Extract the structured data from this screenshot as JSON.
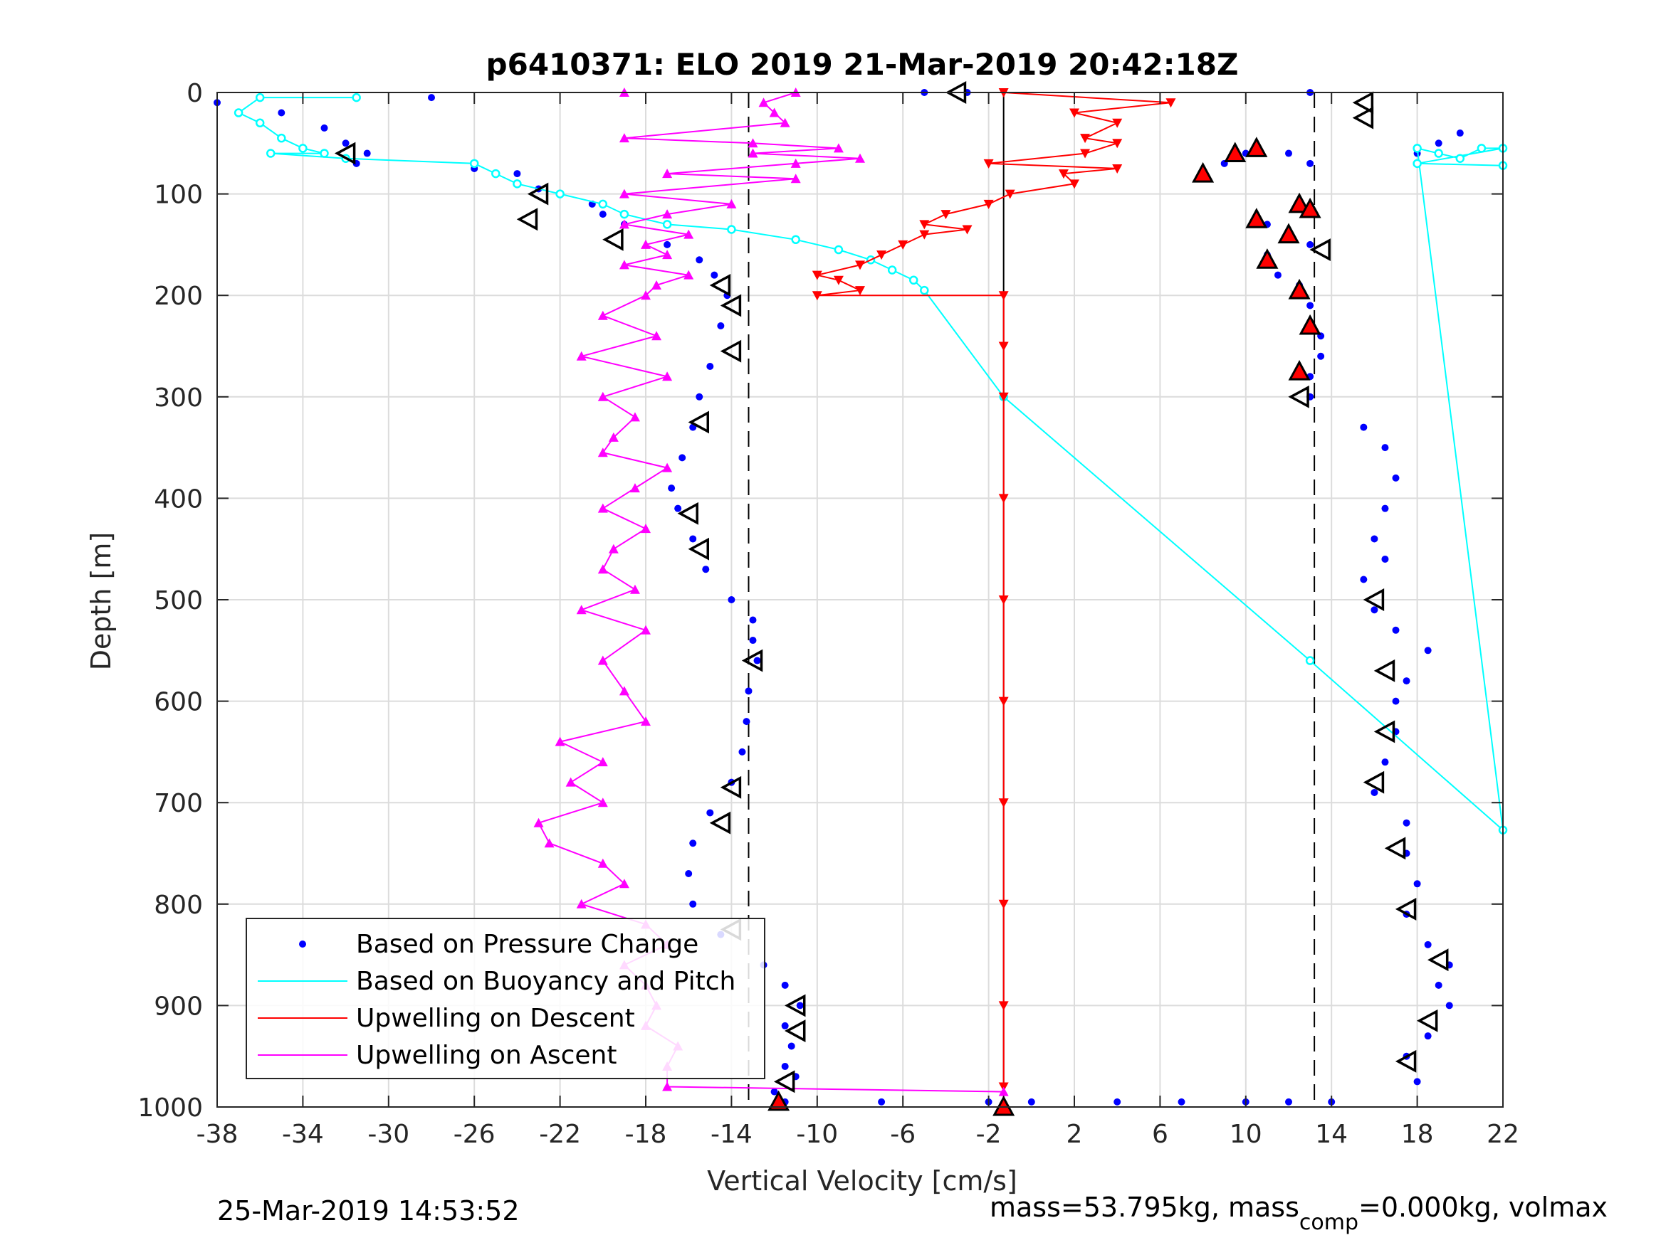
{
  "chart_data": {
    "type": "scatter",
    "title": "p6410371: ELO 2019 21-Mar-2019 20:42:18Z",
    "xlabel": "Vertical Velocity [cm/s]",
    "ylabel": "Depth [m]",
    "xlim": [
      -38,
      22
    ],
    "ylim": [
      0,
      1000
    ],
    "y_reversed": true,
    "grid": true,
    "xticks": [
      "-38",
      "-34",
      "-30",
      "-26",
      "-22",
      "-18",
      "-14",
      "-10",
      "-6",
      "-2",
      "2",
      "6",
      "10",
      "14",
      "18",
      "22"
    ],
    "yticks": [
      "0",
      "100",
      "200",
      "300",
      "400",
      "500",
      "600",
      "700",
      "800",
      "900",
      "1000"
    ],
    "legend_position": "bottom-left",
    "legend": [
      {
        "label": "Based on Pressure Change",
        "color": "#0000ff",
        "style": "dot"
      },
      {
        "label": "Based on Buoyancy and Pitch",
        "color": "#00ffff",
        "style": "line"
      },
      {
        "label": "Upwelling on Descent",
        "color": "#ff0000",
        "style": "line"
      },
      {
        "label": "Upwelling on Ascent",
        "color": "#ff00ff",
        "style": "line"
      }
    ],
    "reference_lines": {
      "vertical_solid": -1.3,
      "dashed": [
        -13.2,
        13.2
      ]
    },
    "series": [
      {
        "name": "Based on Pressure Change",
        "color": "#0000ff",
        "marker": "dot",
        "points": [
          [
            -38,
            10
          ],
          [
            -35,
            20
          ],
          [
            -33,
            35
          ],
          [
            -32,
            50
          ],
          [
            -31,
            60
          ],
          [
            -31.5,
            70
          ],
          [
            -28,
            5
          ],
          [
            -26,
            75
          ],
          [
            -24,
            80
          ],
          [
            -23,
            95
          ],
          [
            -22,
            100
          ],
          [
            -20.5,
            110
          ],
          [
            -20,
            120
          ],
          [
            -19,
            130
          ],
          [
            -17,
            150
          ],
          [
            -15.5,
            165
          ],
          [
            -14.8,
            180
          ],
          [
            -14.2,
            200
          ],
          [
            -14.5,
            230
          ],
          [
            -15,
            270
          ],
          [
            -15.5,
            300
          ],
          [
            -15.8,
            330
          ],
          [
            -16.3,
            360
          ],
          [
            -16.8,
            390
          ],
          [
            -16.5,
            410
          ],
          [
            -15.8,
            440
          ],
          [
            -15.2,
            470
          ],
          [
            -14,
            500
          ],
          [
            -13,
            520
          ],
          [
            -13,
            540
          ],
          [
            -12.8,
            560
          ],
          [
            -13.2,
            590
          ],
          [
            -13.3,
            620
          ],
          [
            -13.5,
            650
          ],
          [
            -14,
            680
          ],
          [
            -15,
            710
          ],
          [
            -15.8,
            740
          ],
          [
            -16,
            770
          ],
          [
            -15.8,
            800
          ],
          [
            -14.5,
            830
          ],
          [
            -12.5,
            860
          ],
          [
            -11.5,
            880
          ],
          [
            -10.8,
            900
          ],
          [
            -11.5,
            920
          ],
          [
            -11.2,
            940
          ],
          [
            -11.5,
            960
          ],
          [
            -11,
            970
          ],
          [
            -12,
            985
          ],
          [
            -11.5,
            995
          ],
          [
            -7,
            995
          ],
          [
            -2,
            995
          ],
          [
            0,
            995
          ],
          [
            4,
            995
          ],
          [
            7,
            995
          ],
          [
            10,
            995
          ],
          [
            12,
            995
          ],
          [
            14,
            995
          ],
          [
            10,
            60
          ],
          [
            9,
            70
          ],
          [
            8,
            80
          ],
          [
            12,
            60
          ],
          [
            13,
            70
          ],
          [
            12.5,
            110
          ],
          [
            13,
            120
          ],
          [
            11,
            130
          ],
          [
            12,
            140
          ],
          [
            13,
            150
          ],
          [
            11,
            160
          ],
          [
            11.5,
            180
          ],
          [
            12.5,
            190
          ],
          [
            13,
            210
          ],
          [
            13.5,
            240
          ],
          [
            13.5,
            260
          ],
          [
            13,
            280
          ],
          [
            13,
            300
          ],
          [
            15.5,
            330
          ],
          [
            16.5,
            350
          ],
          [
            17,
            380
          ],
          [
            16.5,
            410
          ],
          [
            16,
            440
          ],
          [
            16.5,
            460
          ],
          [
            15.5,
            480
          ],
          [
            16,
            510
          ],
          [
            17,
            530
          ],
          [
            18.5,
            550
          ],
          [
            17.5,
            580
          ],
          [
            17,
            600
          ],
          [
            17,
            630
          ],
          [
            16.5,
            660
          ],
          [
            16,
            690
          ],
          [
            17.5,
            720
          ],
          [
            17.5,
            750
          ],
          [
            18,
            780
          ],
          [
            17.5,
            810
          ],
          [
            18.5,
            840
          ],
          [
            19.5,
            860
          ],
          [
            19,
            880
          ],
          [
            19.5,
            900
          ],
          [
            18.5,
            930
          ],
          [
            17.5,
            950
          ],
          [
            18,
            975
          ],
          [
            13,
            0
          ],
          [
            20,
            40
          ],
          [
            19,
            50
          ],
          [
            18,
            60
          ],
          [
            -3,
            0
          ],
          [
            -5,
            0
          ]
        ]
      },
      {
        "name": "Based on Buoyancy and Pitch",
        "color": "#00ffff",
        "marker": "open-circle",
        "points": [
          [
            -31.5,
            5
          ],
          [
            -36,
            5
          ],
          [
            -37,
            20
          ],
          [
            -36,
            30
          ],
          [
            -35,
            45
          ],
          [
            -34,
            55
          ],
          [
            -33,
            60
          ],
          [
            -35.5,
            60
          ],
          [
            -32,
            65
          ],
          [
            -26,
            70
          ],
          [
            -25,
            80
          ],
          [
            -24,
            90
          ],
          [
            -22,
            100
          ],
          [
            -20,
            110
          ],
          [
            -19,
            120
          ],
          [
            -17,
            130
          ],
          [
            -14,
            135
          ],
          [
            -11,
            145
          ],
          [
            -9,
            155
          ],
          [
            -7.5,
            165
          ],
          [
            -6.5,
            175
          ],
          [
            -5.5,
            185
          ],
          [
            -5,
            195
          ],
          [
            -1.3,
            300
          ],
          [
            13,
            560
          ],
          [
            22,
            727
          ],
          [
            18,
            55
          ],
          [
            19,
            60
          ],
          [
            20,
            65
          ],
          [
            21,
            55
          ],
          [
            22,
            55
          ],
          [
            18,
            70
          ],
          [
            22,
            72
          ]
        ]
      },
      {
        "name": "Upwelling on Descent",
        "color": "#ff0000",
        "marker": "down-triangle",
        "points": [
          [
            -1.3,
            0
          ],
          [
            6.5,
            10
          ],
          [
            2,
            20
          ],
          [
            4,
            30
          ],
          [
            2.5,
            45
          ],
          [
            4,
            50
          ],
          [
            2.5,
            60
          ],
          [
            -2,
            70
          ],
          [
            4,
            75
          ],
          [
            1.5,
            80
          ],
          [
            2,
            90
          ],
          [
            -1,
            100
          ],
          [
            -2,
            110
          ],
          [
            -4,
            120
          ],
          [
            -5,
            130
          ],
          [
            -3,
            135
          ],
          [
            -5,
            140
          ],
          [
            -6,
            150
          ],
          [
            -7,
            160
          ],
          [
            -8,
            170
          ],
          [
            -10,
            180
          ],
          [
            -9,
            185
          ],
          [
            -8,
            195
          ],
          [
            -10,
            200
          ],
          [
            -1.3,
            200
          ],
          [
            -1.3,
            250
          ],
          [
            -1.3,
            300
          ],
          [
            -1.3,
            400
          ],
          [
            -1.3,
            500
          ],
          [
            -1.3,
            600
          ],
          [
            -1.3,
            700
          ],
          [
            -1.3,
            800
          ],
          [
            -1.3,
            900
          ],
          [
            -1.3,
            980
          ]
        ]
      },
      {
        "name": "Upwelling on Ascent",
        "color": "#ff00ff",
        "marker": "up-triangle",
        "points": [
          [
            -19,
            0
          ],
          [
            -11,
            0
          ],
          [
            -12.5,
            10
          ],
          [
            -12,
            20
          ],
          [
            -11.5,
            30
          ],
          [
            -19,
            45
          ],
          [
            -13,
            50
          ],
          [
            -9,
            55
          ],
          [
            -13,
            60
          ],
          [
            -8,
            65
          ],
          [
            -11,
            70
          ],
          [
            -17,
            80
          ],
          [
            -11,
            85
          ],
          [
            -19,
            100
          ],
          [
            -14,
            110
          ],
          [
            -17,
            120
          ],
          [
            -19,
            130
          ],
          [
            -16,
            140
          ],
          [
            -18,
            150
          ],
          [
            -17,
            160
          ],
          [
            -19,
            170
          ],
          [
            -16,
            180
          ],
          [
            -17.5,
            190
          ],
          [
            -18,
            200
          ],
          [
            -20,
            220
          ],
          [
            -17.5,
            240
          ],
          [
            -21,
            260
          ],
          [
            -17,
            280
          ],
          [
            -20,
            300
          ],
          [
            -18.5,
            320
          ],
          [
            -19.5,
            340
          ],
          [
            -20,
            355
          ],
          [
            -17,
            370
          ],
          [
            -18.5,
            390
          ],
          [
            -20,
            410
          ],
          [
            -18,
            430
          ],
          [
            -19.5,
            450
          ],
          [
            -20,
            470
          ],
          [
            -18.5,
            490
          ],
          [
            -21,
            510
          ],
          [
            -18,
            530
          ],
          [
            -20,
            560
          ],
          [
            -19,
            590
          ],
          [
            -18,
            620
          ],
          [
            -22,
            640
          ],
          [
            -20,
            660
          ],
          [
            -21.5,
            680
          ],
          [
            -20,
            700
          ],
          [
            -23,
            720
          ],
          [
            -22.5,
            740
          ],
          [
            -20,
            760
          ],
          [
            -19,
            780
          ],
          [
            -21,
            800
          ],
          [
            -18,
            820
          ],
          [
            -17,
            840
          ],
          [
            -19,
            860
          ],
          [
            -18,
            880
          ],
          [
            -17.5,
            900
          ],
          [
            -18,
            920
          ],
          [
            -16.5,
            940
          ],
          [
            -17,
            960
          ],
          [
            -17,
            980
          ],
          [
            -1.3,
            985
          ]
        ]
      },
      {
        "name": "",
        "color": "#000000",
        "marker": "open-triangle-left",
        "points": [
          [
            -32,
            60
          ],
          [
            -23,
            100
          ],
          [
            -23.5,
            125
          ],
          [
            -19.5,
            145
          ],
          [
            -14.5,
            190
          ],
          [
            -14,
            210
          ],
          [
            -14,
            255
          ],
          [
            -15.5,
            325
          ],
          [
            -16,
            415
          ],
          [
            -15.5,
            450
          ],
          [
            -13,
            560
          ],
          [
            -14,
            685
          ],
          [
            -14.5,
            720
          ],
          [
            -14,
            825
          ],
          [
            -11,
            900
          ],
          [
            -11,
            925
          ],
          [
            -11.5,
            975
          ],
          [
            -3.5,
            0
          ],
          [
            15.5,
            10
          ],
          [
            15.5,
            25
          ],
          [
            16,
            500
          ],
          [
            16.5,
            570
          ],
          [
            16.5,
            630
          ],
          [
            16,
            680
          ],
          [
            17,
            745
          ],
          [
            17.5,
            805
          ],
          [
            19,
            855
          ],
          [
            18.5,
            915
          ],
          [
            17.5,
            955
          ],
          [
            13.5,
            155
          ],
          [
            12.5,
            300
          ]
        ]
      },
      {
        "name": "",
        "color": "#ff0000",
        "marker": "filled-triangle-up",
        "points": [
          [
            10.5,
            55
          ],
          [
            9.5,
            60
          ],
          [
            8,
            80
          ],
          [
            12.5,
            110
          ],
          [
            13,
            115
          ],
          [
            10.5,
            125
          ],
          [
            12,
            140
          ],
          [
            11,
            165
          ],
          [
            12.5,
            195
          ],
          [
            13,
            230
          ],
          [
            12.5,
            275
          ],
          [
            -11.8,
            995
          ],
          [
            -1.3,
            1000
          ]
        ]
      }
    ],
    "footer_left": "25-Mar-2019 14:53:52",
    "footer_right": "mass=53.795kg, mass",
    "footer_right_sub": "comp",
    "footer_right_tail": "=0.000kg, volmax"
  }
}
